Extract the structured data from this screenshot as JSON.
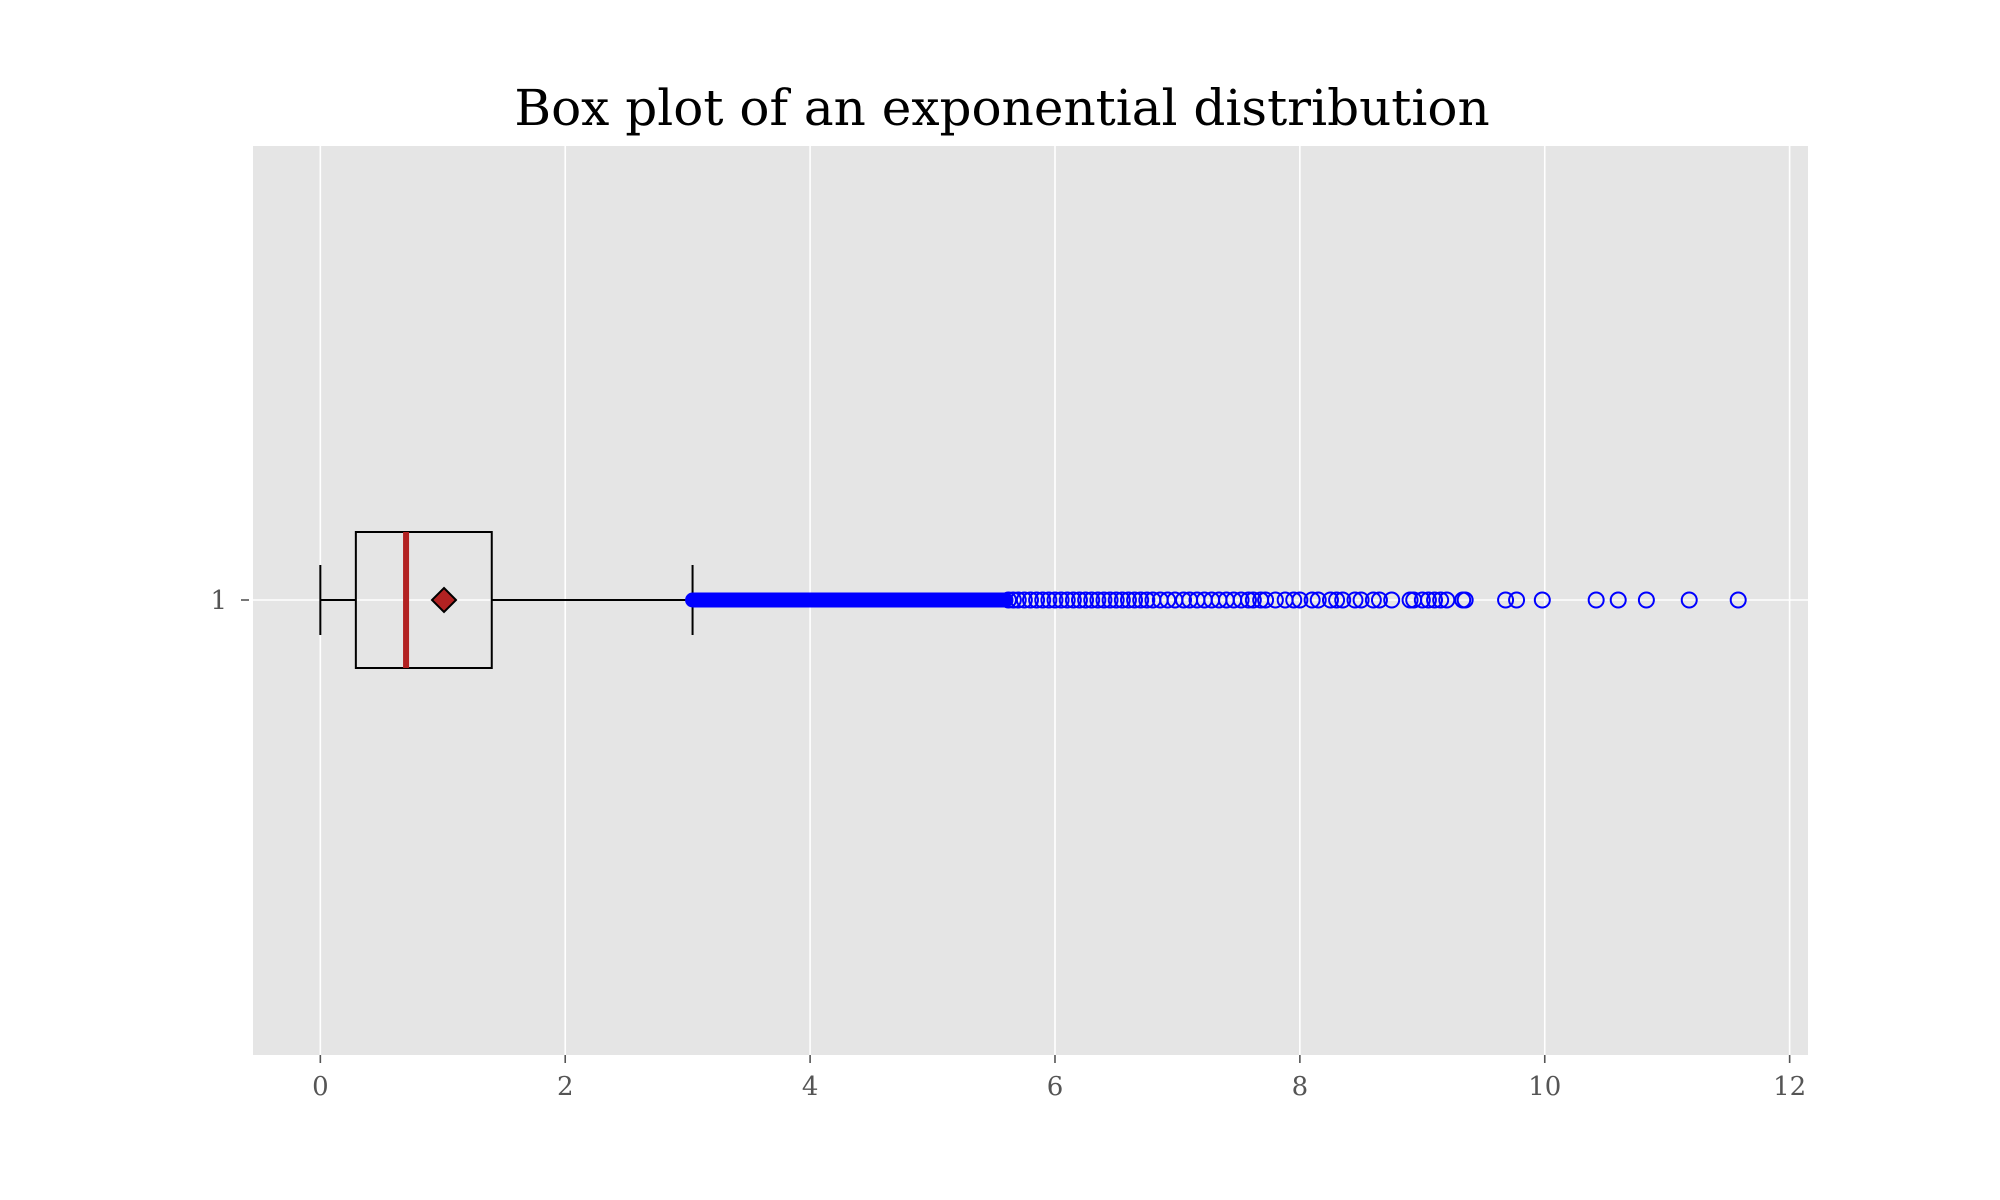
{
  "chart_data": {
    "type": "boxplot",
    "orientation": "horizontal",
    "title": "Box plot of an exponential distribution",
    "xlabel": "",
    "ylabel": "",
    "xlim": [
      -0.55,
      12.15
    ],
    "x_ticks": [
      0,
      2,
      4,
      6,
      8,
      10,
      12
    ],
    "x_tick_labels": [
      "0",
      "2",
      "4",
      "6",
      "8",
      "10",
      "12"
    ],
    "y_ticks": [
      1
    ],
    "y_tick_labels": [
      "1"
    ],
    "grid": true,
    "legend": "none",
    "boxes": [
      {
        "position": 1,
        "whisker_low": 0.0,
        "q1": 0.29,
        "median": 0.7,
        "q3": 1.4,
        "whisker_high": 3.04,
        "mean": 1.01,
        "outlier_dense_range": [
          3.04,
          5.6
        ],
        "outliers": [
          5.62,
          5.66,
          5.7,
          5.75,
          5.8,
          5.85,
          5.9,
          5.95,
          6.0,
          6.05,
          6.1,
          6.15,
          6.2,
          6.25,
          6.3,
          6.35,
          6.4,
          6.45,
          6.5,
          6.55,
          6.6,
          6.65,
          6.7,
          6.75,
          6.8,
          6.86,
          6.92,
          6.98,
          7.05,
          7.1,
          7.16,
          7.22,
          7.28,
          7.34,
          7.4,
          7.46,
          7.52,
          7.58,
          7.62,
          7.68,
          7.72,
          7.8,
          7.88,
          7.95,
          8.0,
          8.1,
          8.15,
          8.25,
          8.3,
          8.35,
          8.45,
          8.5,
          8.6,
          8.65,
          8.75,
          8.9,
          8.93,
          9.0,
          9.05,
          9.1,
          9.15,
          9.2,
          9.33,
          9.35,
          9.68,
          9.77,
          9.98,
          10.42,
          10.6,
          10.83,
          11.18,
          11.58
        ]
      }
    ]
  },
  "colors": {
    "plot_background": "#e5e5e5",
    "grid": "#ffffff",
    "box": "#000000",
    "median": "#b22222",
    "mean_marker": "#b22222",
    "outliers": "#0000ff"
  }
}
